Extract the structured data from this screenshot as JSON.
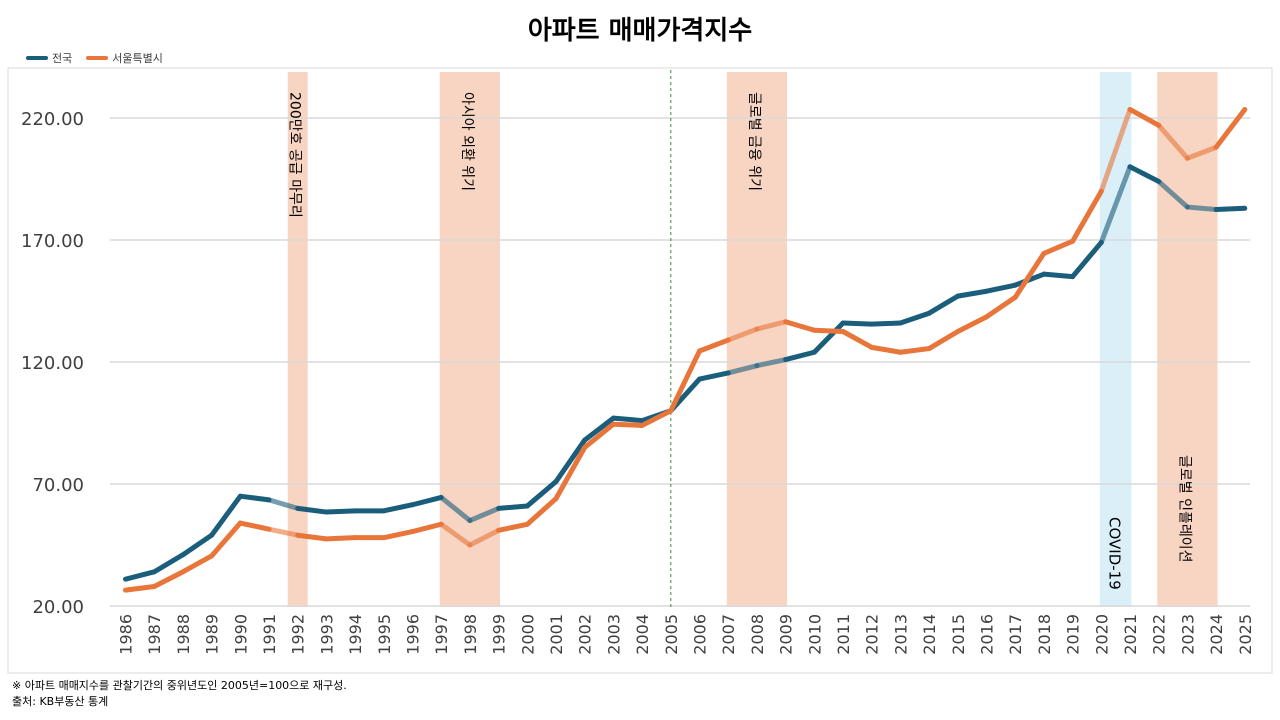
{
  "chart_data": {
    "type": "line",
    "title": "아파트 매매가격지수",
    "xlabel": "",
    "ylabel": "",
    "ylim": [
      20,
      232
    ],
    "yticks": [
      "20.00",
      "70.00",
      "120.00",
      "170.00",
      "220.00"
    ],
    "ytick_values": [
      20,
      70,
      120,
      170,
      220
    ],
    "grid": true,
    "legend_position": "top-left",
    "x": [
      "1986",
      "1987",
      "1988",
      "1989",
      "1990",
      "1991",
      "1992",
      "1993",
      "1994",
      "1995",
      "1996",
      "1997",
      "1998",
      "1999",
      "2000",
      "2001",
      "2002",
      "2003",
      "2004",
      "2005",
      "2006",
      "2007",
      "2008",
      "2009",
      "2010",
      "2011",
      "2012",
      "2013",
      "2014",
      "2015",
      "2016",
      "2017",
      "2018",
      "2019",
      "2020",
      "2021",
      "2022",
      "2023",
      "2024",
      "2025"
    ],
    "series": [
      {
        "name": "전국",
        "color": "#1a5e7c",
        "values": [
          31,
          34,
          41,
          49,
          65,
          63.5,
          60,
          58.5,
          59,
          59,
          61.5,
          64.5,
          55,
          60,
          61,
          71,
          88,
          97,
          96,
          100,
          113,
          115.5,
          118.5,
          121,
          124,
          136,
          135.5,
          136,
          140,
          147,
          149,
          151.5,
          156,
          155,
          169,
          200,
          194,
          183.5,
          182.5,
          183
        ]
      },
      {
        "name": "서울특별시",
        "color": "#e8763a",
        "values": [
          26.5,
          28,
          34,
          40.5,
          54,
          51.5,
          49,
          47.5,
          48,
          48,
          50.5,
          53.5,
          45,
          51,
          53.5,
          64,
          85,
          94.5,
          94,
          100,
          124.5,
          129,
          133.5,
          136.5,
          133,
          132.5,
          126,
          124,
          125.5,
          132.5,
          138.5,
          146.5,
          164.5,
          169.5,
          190,
          223.5,
          217,
          203.5,
          208,
          223.5
        ]
      }
    ],
    "events": [
      {
        "label": "200만호 공급 마무리",
        "start": "1992",
        "end": "1992",
        "color": "#f8d4c3"
      },
      {
        "label": "아시아 외환 위기",
        "start": "1997",
        "end": "1999",
        "color": "#f8d4c3"
      },
      {
        "label": "글로벌 금융 위기",
        "start": "2007",
        "end": "2009",
        "color": "#f8d4c3"
      },
      {
        "label": "COVID-19",
        "start": "2020",
        "end": "2021",
        "color": "#dbeff8"
      },
      {
        "label": "글로벌 인플레이션",
        "start": "2022",
        "end": "2024",
        "color": "#f8d4c3"
      }
    ],
    "reference_line": {
      "x": "2005",
      "color": "#3a8c3a"
    }
  },
  "footnote": {
    "line1": "※ 아파트 매매지수를 관찰기간의 중위년도인  2005년=100으로 재구성.",
    "line2": "출처: KB부동산 통계"
  }
}
